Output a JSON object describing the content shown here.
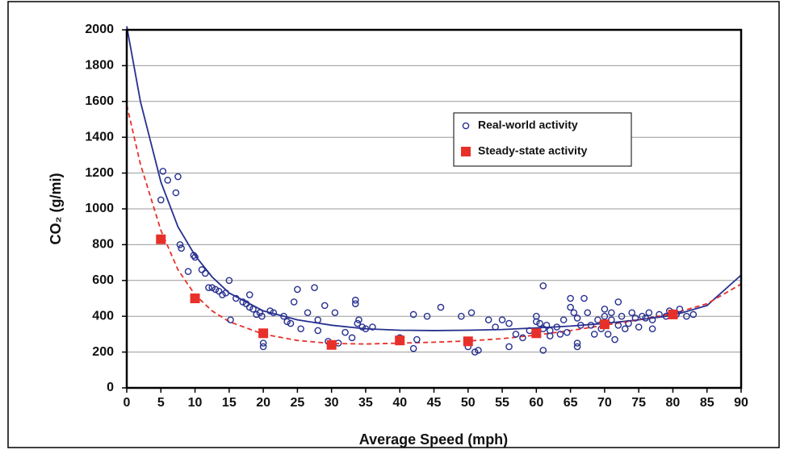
{
  "chart_data": {
    "type": "scatter",
    "xlabel": "Average Speed (mph)",
    "ylabel": "CO₂ (g/mi)",
    "xlim": [
      0,
      90
    ],
    "ylim": [
      0,
      2000
    ],
    "xticks": [
      0,
      5,
      10,
      15,
      20,
      25,
      30,
      35,
      40,
      45,
      50,
      55,
      60,
      65,
      70,
      75,
      80,
      85,
      90
    ],
    "yticks": [
      0,
      200,
      400,
      600,
      800,
      1000,
      1200,
      1400,
      1600,
      1800,
      2000
    ],
    "grid": true,
    "legend": "upper right",
    "series": [
      {
        "name": "Real-world activity",
        "marker": "circle",
        "color": "#27308f",
        "x": [
          5,
          5.3,
          6,
          7.2,
          7.5,
          7.8,
          8,
          9,
          9.8,
          10,
          11,
          11.5,
          12,
          12.5,
          13,
          13.5,
          14,
          14.5,
          15,
          15.2,
          16,
          17,
          17.5,
          18,
          18,
          18.5,
          19,
          19.5,
          19.8,
          20,
          20,
          21,
          21.5,
          23,
          23.5,
          24,
          24.5,
          25,
          25.5,
          26.5,
          27.5,
          28,
          28,
          29,
          29.5,
          30.5,
          31,
          32,
          33,
          33.5,
          33.5,
          34,
          33.8,
          34.5,
          35,
          36,
          40,
          42,
          42,
          42.5,
          44,
          46,
          49,
          50,
          50.5,
          51,
          51.5,
          53,
          54,
          55,
          56,
          56,
          57,
          58,
          59,
          60,
          60,
          60.5,
          61,
          61,
          61,
          61.5,
          62,
          62,
          63,
          63.5,
          64,
          64.5,
          65,
          65,
          65.5,
          66,
          66,
          66,
          66.5,
          67,
          67.5,
          68,
          68.5,
          69,
          69.5,
          70,
          70,
          70.5,
          71,
          71,
          71.5,
          72,
          72,
          72.5,
          73,
          73.5,
          74,
          74.5,
          75,
          75.5,
          76,
          76.5,
          77,
          77,
          78,
          79,
          79.5,
          80,
          80.5,
          81,
          82,
          83
        ],
        "values": [
          1050,
          1210,
          1160,
          1090,
          1180,
          800,
          780,
          650,
          740,
          730,
          660,
          640,
          560,
          560,
          550,
          540,
          520,
          530,
          600,
          380,
          500,
          480,
          470,
          520,
          450,
          440,
          410,
          420,
          400,
          230,
          250,
          430,
          420,
          400,
          370,
          360,
          480,
          550,
          330,
          420,
          560,
          380,
          320,
          460,
          260,
          420,
          250,
          310,
          280,
          470,
          490,
          380,
          360,
          340,
          330,
          340,
          280,
          410,
          220,
          270,
          400,
          450,
          400,
          230,
          420,
          200,
          210,
          380,
          340,
          380,
          360,
          230,
          300,
          280,
          320,
          400,
          370,
          360,
          570,
          330,
          210,
          350,
          320,
          290,
          340,
          300,
          380,
          310,
          500,
          450,
          420,
          390,
          250,
          230,
          350,
          500,
          420,
          350,
          300,
          380,
          330,
          400,
          440,
          300,
          420,
          380,
          270,
          350,
          480,
          400,
          330,
          360,
          420,
          390,
          340,
          400,
          390,
          420,
          380,
          330,
          410,
          400,
          430,
          420,
          410,
          440,
          400,
          410
        ]
      },
      {
        "name": "Steady-state activity",
        "marker": "square",
        "color": "#e8302a",
        "x": [
          5,
          10,
          20,
          30,
          40,
          50,
          60,
          70,
          80
        ],
        "values": [
          830,
          500,
          305,
          240,
          265,
          260,
          305,
          355,
          410
        ]
      },
      {
        "style": "solid",
        "color": "#27308f",
        "x": [
          0,
          2,
          5,
          7.5,
          10,
          12.5,
          15,
          20,
          25,
          30,
          35,
          40,
          45,
          50,
          55,
          60,
          65,
          70,
          75,
          80,
          85,
          90
        ],
        "values": [
          2020,
          1600,
          1150,
          900,
          740,
          620,
          530,
          430,
          380,
          350,
          330,
          322,
          320,
          322,
          326,
          335,
          345,
          360,
          380,
          405,
          460,
          630
        ]
      },
      {
        "style": "dashed",
        "color": "#e8302a",
        "x": [
          0,
          2,
          5,
          7.5,
          10,
          12.5,
          15,
          20,
          25,
          30,
          35,
          40,
          45,
          50,
          55,
          60,
          65,
          70,
          75,
          80,
          85,
          90
        ],
        "values": [
          1580,
          1250,
          880,
          660,
          520,
          430,
          370,
          300,
          265,
          248,
          245,
          250,
          255,
          262,
          275,
          295,
          320,
          350,
          380,
          415,
          470,
          580
        ]
      }
    ]
  }
}
